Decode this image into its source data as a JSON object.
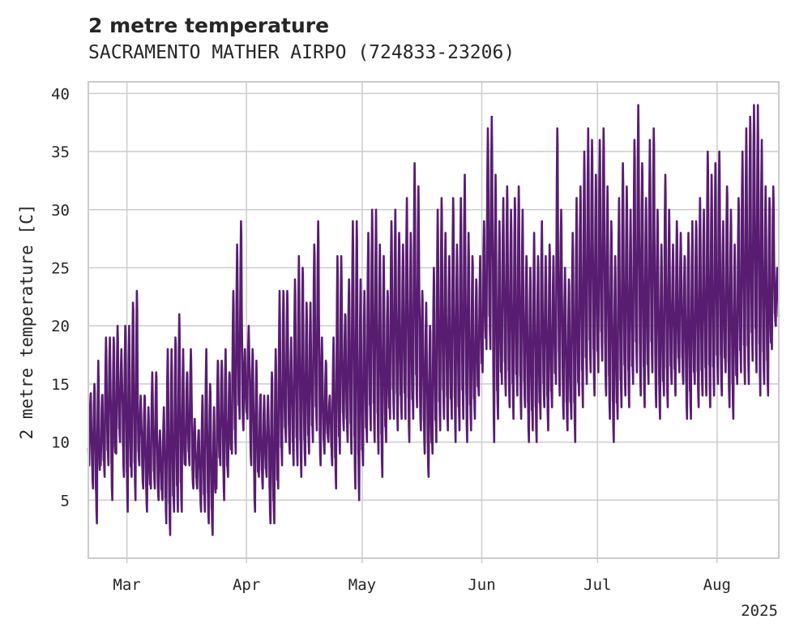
{
  "chart_data": {
    "type": "line",
    "title": "2 metre temperature",
    "subtitle": "SACRAMENTO MATHER AIRPO (724833-23206)",
    "xlabel": "",
    "ylabel": "2 metre temperature [C]",
    "x_range": [
      "2025-02-19",
      "2025-08-16"
    ],
    "ylim": [
      0,
      41
    ],
    "y_ticks": [
      5,
      10,
      15,
      20,
      25,
      30,
      35,
      40
    ],
    "x_ticks": [
      {
        "date": "2025-03-01",
        "label": "Mar"
      },
      {
        "date": "2025-04-01",
        "label": "Apr"
      },
      {
        "date": "2025-05-01",
        "label": "May"
      },
      {
        "date": "2025-06-01",
        "label": "Jun"
      },
      {
        "date": "2025-07-01",
        "label": "Jul"
      },
      {
        "date": "2025-08-01",
        "label": "Aug"
      }
    ],
    "x_offset_label": "2025",
    "grid": true,
    "series": [
      {
        "color": "#581d70",
        "daily": [
          {
            "date": "2025-02-19",
            "min": 8,
            "max": 14
          },
          {
            "date": "2025-02-20",
            "min": 6,
            "max": 15
          },
          {
            "date": "2025-02-21",
            "min": 3,
            "max": 17
          },
          {
            "date": "2025-02-22",
            "min": 8,
            "max": 14
          },
          {
            "date": "2025-02-23",
            "min": 7,
            "max": 19
          },
          {
            "date": "2025-02-24",
            "min": 8,
            "max": 19
          },
          {
            "date": "2025-02-25",
            "min": 5,
            "max": 19
          },
          {
            "date": "2025-02-26",
            "min": 9,
            "max": 20
          },
          {
            "date": "2025-02-27",
            "min": 10,
            "max": 18
          },
          {
            "date": "2025-02-28",
            "min": 7,
            "max": 20
          },
          {
            "date": "2025-03-01",
            "min": 4,
            "max": 20
          },
          {
            "date": "2025-03-02",
            "min": 7,
            "max": 22
          },
          {
            "date": "2025-03-03",
            "min": 5,
            "max": 23
          },
          {
            "date": "2025-03-04",
            "min": 8,
            "max": 14
          },
          {
            "date": "2025-03-05",
            "min": 6,
            "max": 14
          },
          {
            "date": "2025-03-06",
            "min": 4,
            "max": 13
          },
          {
            "date": "2025-03-07",
            "min": 6,
            "max": 16
          },
          {
            "date": "2025-03-08",
            "min": 6,
            "max": 16
          },
          {
            "date": "2025-03-09",
            "min": 5,
            "max": 11
          },
          {
            "date": "2025-03-10",
            "min": 5,
            "max": 13
          },
          {
            "date": "2025-03-11",
            "min": 3,
            "max": 18
          },
          {
            "date": "2025-03-12",
            "min": 2,
            "max": 18
          },
          {
            "date": "2025-03-13",
            "min": 4,
            "max": 19
          },
          {
            "date": "2025-03-14",
            "min": 4,
            "max": 21
          },
          {
            "date": "2025-03-15",
            "min": 4,
            "max": 18
          },
          {
            "date": "2025-03-16",
            "min": 8,
            "max": 16
          },
          {
            "date": "2025-03-17",
            "min": 8,
            "max": 18
          },
          {
            "date": "2025-03-18",
            "min": 6,
            "max": 12
          },
          {
            "date": "2025-03-19",
            "min": 6,
            "max": 11
          },
          {
            "date": "2025-03-20",
            "min": 4,
            "max": 14
          },
          {
            "date": "2025-03-21",
            "min": 4,
            "max": 18
          },
          {
            "date": "2025-03-22",
            "min": 3,
            "max": 15
          },
          {
            "date": "2025-03-23",
            "min": 2,
            "max": 13
          },
          {
            "date": "2025-03-24",
            "min": 6,
            "max": 17
          },
          {
            "date": "2025-03-25",
            "min": 8,
            "max": 17
          },
          {
            "date": "2025-03-26",
            "min": 5,
            "max": 18
          },
          {
            "date": "2025-03-27",
            "min": 7,
            "max": 16
          },
          {
            "date": "2025-03-28",
            "min": 9,
            "max": 23
          },
          {
            "date": "2025-03-29",
            "min": 9,
            "max": 27
          },
          {
            "date": "2025-03-30",
            "min": 12,
            "max": 29
          },
          {
            "date": "2025-03-31",
            "min": 11,
            "max": 18
          },
          {
            "date": "2025-04-01",
            "min": 12,
            "max": 20
          },
          {
            "date": "2025-04-02",
            "min": 8,
            "max": 18
          },
          {
            "date": "2025-04-03",
            "min": 4,
            "max": 17
          },
          {
            "date": "2025-04-04",
            "min": 7,
            "max": 14
          },
          {
            "date": "2025-04-05",
            "min": 6,
            "max": 14
          },
          {
            "date": "2025-04-06",
            "min": 7,
            "max": 14
          },
          {
            "date": "2025-04-07",
            "min": 3,
            "max": 16
          },
          {
            "date": "2025-04-08",
            "min": 3,
            "max": 18
          },
          {
            "date": "2025-04-09",
            "min": 6,
            "max": 23
          },
          {
            "date": "2025-04-10",
            "min": 8,
            "max": 23
          },
          {
            "date": "2025-04-11",
            "min": 10,
            "max": 23
          },
          {
            "date": "2025-04-12",
            "min": 9,
            "max": 19
          },
          {
            "date": "2025-04-13",
            "min": 8,
            "max": 24
          },
          {
            "date": "2025-04-14",
            "min": 8,
            "max": 26
          },
          {
            "date": "2025-04-15",
            "min": 7,
            "max": 25
          },
          {
            "date": "2025-04-16",
            "min": 8,
            "max": 22
          },
          {
            "date": "2025-04-17",
            "min": 9,
            "max": 22
          },
          {
            "date": "2025-04-18",
            "min": 10,
            "max": 27
          },
          {
            "date": "2025-04-19",
            "min": 11,
            "max": 29
          },
          {
            "date": "2025-04-20",
            "min": 8,
            "max": 19
          },
          {
            "date": "2025-04-21",
            "min": 9,
            "max": 17
          },
          {
            "date": "2025-04-22",
            "min": 10,
            "max": 14
          },
          {
            "date": "2025-04-23",
            "min": 8,
            "max": 19
          },
          {
            "date": "2025-04-24",
            "min": 6,
            "max": 26
          },
          {
            "date": "2025-04-25",
            "min": 9,
            "max": 26
          },
          {
            "date": "2025-04-26",
            "min": 11,
            "max": 21
          },
          {
            "date": "2025-04-27",
            "min": 10,
            "max": 24
          },
          {
            "date": "2025-04-28",
            "min": 9,
            "max": 29
          },
          {
            "date": "2025-04-29",
            "min": 6,
            "max": 29
          },
          {
            "date": "2025-04-30",
            "min": 5,
            "max": 24
          },
          {
            "date": "2025-05-01",
            "min": 8,
            "max": 23
          },
          {
            "date": "2025-05-02",
            "min": 10,
            "max": 28
          },
          {
            "date": "2025-05-03",
            "min": 11,
            "max": 30
          },
          {
            "date": "2025-05-04",
            "min": 10,
            "max": 30
          },
          {
            "date": "2025-05-05",
            "min": 9,
            "max": 27
          },
          {
            "date": "2025-05-06",
            "min": 7,
            "max": 26
          },
          {
            "date": "2025-05-07",
            "min": 10,
            "max": 23
          },
          {
            "date": "2025-05-08",
            "min": 12,
            "max": 29
          },
          {
            "date": "2025-05-09",
            "min": 12,
            "max": 30
          },
          {
            "date": "2025-05-10",
            "min": 11,
            "max": 28
          },
          {
            "date": "2025-05-11",
            "min": 12,
            "max": 27
          },
          {
            "date": "2025-05-12",
            "min": 12,
            "max": 31
          },
          {
            "date": "2025-05-13",
            "min": 10,
            "max": 28
          },
          {
            "date": "2025-05-14",
            "min": 12,
            "max": 34
          },
          {
            "date": "2025-05-15",
            "min": 13,
            "max": 32
          },
          {
            "date": "2025-05-16",
            "min": 11,
            "max": 23
          },
          {
            "date": "2025-05-17",
            "min": 9,
            "max": 22
          },
          {
            "date": "2025-05-18",
            "min": 7,
            "max": 20
          },
          {
            "date": "2025-05-19",
            "min": 9,
            "max": 25
          },
          {
            "date": "2025-05-20",
            "min": 10,
            "max": 30
          },
          {
            "date": "2025-05-21",
            "min": 11,
            "max": 31
          },
          {
            "date": "2025-05-22",
            "min": 12,
            "max": 28
          },
          {
            "date": "2025-05-23",
            "min": 11,
            "max": 26
          },
          {
            "date": "2025-05-24",
            "min": 12,
            "max": 31
          },
          {
            "date": "2025-05-25",
            "min": 10,
            "max": 27
          },
          {
            "date": "2025-05-26",
            "min": 11,
            "max": 31
          },
          {
            "date": "2025-05-27",
            "min": 12,
            "max": 33
          },
          {
            "date": "2025-05-28",
            "min": 10,
            "max": 28
          },
          {
            "date": "2025-05-29",
            "min": 11,
            "max": 26
          },
          {
            "date": "2025-05-30",
            "min": 12,
            "max": 24
          },
          {
            "date": "2025-05-31",
            "min": 14,
            "max": 26
          },
          {
            "date": "2025-06-01",
            "min": 16,
            "max": 29
          },
          {
            "date": "2025-06-02",
            "min": 18,
            "max": 37
          },
          {
            "date": "2025-06-03",
            "min": 18,
            "max": 38
          },
          {
            "date": "2025-06-04",
            "min": 10,
            "max": 33
          },
          {
            "date": "2025-06-05",
            "min": 12,
            "max": 29
          },
          {
            "date": "2025-06-06",
            "min": 15,
            "max": 31
          },
          {
            "date": "2025-06-07",
            "min": 14,
            "max": 32
          },
          {
            "date": "2025-06-08",
            "min": 13,
            "max": 30
          },
          {
            "date": "2025-06-09",
            "min": 12,
            "max": 31
          },
          {
            "date": "2025-06-10",
            "min": 14,
            "max": 32
          },
          {
            "date": "2025-06-11",
            "min": 12,
            "max": 30
          },
          {
            "date": "2025-06-12",
            "min": 13,
            "max": 26
          },
          {
            "date": "2025-06-13",
            "min": 10,
            "max": 25
          },
          {
            "date": "2025-06-14",
            "min": 11,
            "max": 28
          },
          {
            "date": "2025-06-15",
            "min": 10,
            "max": 26
          },
          {
            "date": "2025-06-16",
            "min": 12,
            "max": 29
          },
          {
            "date": "2025-06-17",
            "min": 13,
            "max": 26
          },
          {
            "date": "2025-06-18",
            "min": 11,
            "max": 27
          },
          {
            "date": "2025-06-19",
            "min": 13,
            "max": 26
          },
          {
            "date": "2025-06-20",
            "min": 15,
            "max": 37
          },
          {
            "date": "2025-06-21",
            "min": 14,
            "max": 30
          },
          {
            "date": "2025-06-22",
            "min": 12,
            "max": 25
          },
          {
            "date": "2025-06-23",
            "min": 11,
            "max": 24
          },
          {
            "date": "2025-06-24",
            "min": 12,
            "max": 28
          },
          {
            "date": "2025-06-25",
            "min": 10,
            "max": 31
          },
          {
            "date": "2025-06-26",
            "min": 14,
            "max": 32
          },
          {
            "date": "2025-06-27",
            "min": 13,
            "max": 35
          },
          {
            "date": "2025-06-28",
            "min": 15,
            "max": 37
          },
          {
            "date": "2025-06-29",
            "min": 16,
            "max": 36
          },
          {
            "date": "2025-06-30",
            "min": 14,
            "max": 33
          },
          {
            "date": "2025-07-01",
            "min": 16,
            "max": 36
          },
          {
            "date": "2025-07-02",
            "min": 17,
            "max": 37
          },
          {
            "date": "2025-07-03",
            "min": 14,
            "max": 32
          },
          {
            "date": "2025-07-04",
            "min": 12,
            "max": 29
          },
          {
            "date": "2025-07-05",
            "min": 10,
            "max": 26
          },
          {
            "date": "2025-07-06",
            "min": 12,
            "max": 31
          },
          {
            "date": "2025-07-07",
            "min": 13,
            "max": 34
          },
          {
            "date": "2025-07-08",
            "min": 14,
            "max": 32
          },
          {
            "date": "2025-07-09",
            "min": 13,
            "max": 30
          },
          {
            "date": "2025-07-10",
            "min": 15,
            "max": 36
          },
          {
            "date": "2025-07-11",
            "min": 16,
            "max": 39
          },
          {
            "date": "2025-07-12",
            "min": 14,
            "max": 34
          },
          {
            "date": "2025-07-13",
            "min": 13,
            "max": 31
          },
          {
            "date": "2025-07-14",
            "min": 15,
            "max": 36
          },
          {
            "date": "2025-07-15",
            "min": 16,
            "max": 37
          },
          {
            "date": "2025-07-16",
            "min": 13,
            "max": 30
          },
          {
            "date": "2025-07-17",
            "min": 12,
            "max": 27
          },
          {
            "date": "2025-07-18",
            "min": 14,
            "max": 33
          },
          {
            "date": "2025-07-19",
            "min": 13,
            "max": 30
          },
          {
            "date": "2025-07-20",
            "min": 15,
            "max": 27
          },
          {
            "date": "2025-07-21",
            "min": 14,
            "max": 29
          },
          {
            "date": "2025-07-22",
            "min": 16,
            "max": 28
          },
          {
            "date": "2025-07-23",
            "min": 15,
            "max": 26
          },
          {
            "date": "2025-07-24",
            "min": 12,
            "max": 28
          },
          {
            "date": "2025-07-25",
            "min": 12,
            "max": 29
          },
          {
            "date": "2025-07-26",
            "min": 15,
            "max": 29
          },
          {
            "date": "2025-07-27",
            "min": 13,
            "max": 31
          },
          {
            "date": "2025-07-28",
            "min": 14,
            "max": 30
          },
          {
            "date": "2025-07-29",
            "min": 14,
            "max": 35
          },
          {
            "date": "2025-07-30",
            "min": 13,
            "max": 33
          },
          {
            "date": "2025-07-31",
            "min": 14,
            "max": 34
          },
          {
            "date": "2025-08-01",
            "min": 15,
            "max": 35
          },
          {
            "date": "2025-08-02",
            "min": 14,
            "max": 29
          },
          {
            "date": "2025-08-03",
            "min": 16,
            "max": 32
          },
          {
            "date": "2025-08-04",
            "min": 13,
            "max": 30
          },
          {
            "date": "2025-08-05",
            "min": 12,
            "max": 27
          },
          {
            "date": "2025-08-06",
            "min": 15,
            "max": 31
          },
          {
            "date": "2025-08-07",
            "min": 16,
            "max": 35
          },
          {
            "date": "2025-08-08",
            "min": 15,
            "max": 37
          },
          {
            "date": "2025-08-09",
            "min": 15,
            "max": 38
          },
          {
            "date": "2025-08-10",
            "min": 17,
            "max": 39
          },
          {
            "date": "2025-08-11",
            "min": 16,
            "max": 39
          },
          {
            "date": "2025-08-12",
            "min": 14,
            "max": 36
          },
          {
            "date": "2025-08-13",
            "min": 15,
            "max": 32
          },
          {
            "date": "2025-08-14",
            "min": 14,
            "max": 31
          },
          {
            "date": "2025-08-15",
            "min": 18,
            "max": 32
          },
          {
            "date": "2025-08-16",
            "min": 20,
            "max": 25
          }
        ]
      }
    ]
  }
}
